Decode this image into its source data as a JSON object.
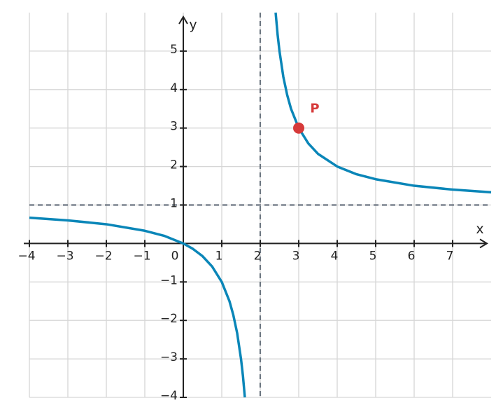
{
  "chart_data": {
    "type": "line",
    "x_label": "x",
    "y_label": "y",
    "x": [
      -4,
      -3,
      -2,
      -1,
      -0.5,
      0,
      0.25,
      0.5,
      0.75,
      1,
      1.2,
      1.3,
      1.4,
      1.5,
      1.55,
      1.6,
      2,
      2.4,
      2.45,
      2.5,
      2.6,
      2.7,
      2.8,
      3,
      3.25,
      3.5,
      4,
      4.5,
      5,
      6,
      7,
      8
    ],
    "series": [
      {
        "color": "#0a86b8",
        "values": [
          0.67,
          0.6,
          0.5,
          0.33,
          0.2,
          0,
          -0.14,
          -0.33,
          -0.6,
          -1,
          -1.5,
          -1.86,
          -2.33,
          -3,
          -3.44,
          -4,
          null,
          6,
          5.44,
          5,
          4.33,
          3.86,
          3.5,
          3,
          2.6,
          2.33,
          2,
          1.8,
          1.67,
          1.5,
          1.4,
          1.33
        ]
      }
    ],
    "point": {
      "label": "P",
      "x": 3,
      "y": 3,
      "color": "#d63a3a"
    },
    "asymptotes": {
      "x": 2,
      "y": 1,
      "color": "#6b7580"
    },
    "xlim": [
      -4,
      8
    ],
    "ylim": [
      -4,
      6
    ],
    "xticks": [
      {
        "value": -4,
        "label": "−4"
      },
      {
        "value": -3,
        "label": "−3"
      },
      {
        "value": -2,
        "label": "−2"
      },
      {
        "value": -1,
        "label": "−1"
      },
      0,
      1,
      2,
      3,
      4,
      5,
      6,
      7
    ],
    "yticks": [
      {
        "value": -4,
        "label": "−4"
      },
      {
        "value": -3,
        "label": "−3"
      },
      {
        "value": -2,
        "label": "−2"
      },
      {
        "value": -1,
        "label": "−1"
      },
      1,
      2,
      3,
      4,
      5
    ],
    "grid": true
  }
}
